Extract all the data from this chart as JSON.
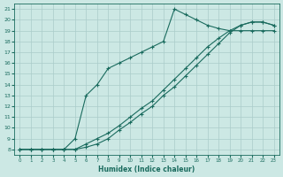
{
  "xlabel": "Humidex (Indice chaleur)",
  "xlim": [
    -0.5,
    23.5
  ],
  "ylim": [
    7.5,
    21.5
  ],
  "xticks": [
    0,
    1,
    2,
    3,
    4,
    5,
    6,
    7,
    8,
    9,
    10,
    11,
    12,
    13,
    14,
    15,
    16,
    17,
    18,
    19,
    20,
    21,
    22,
    23
  ],
  "yticks": [
    8,
    9,
    10,
    11,
    12,
    13,
    14,
    15,
    16,
    17,
    18,
    19,
    20,
    21
  ],
  "bg_color": "#cce8e4",
  "grid_color": "#aaccca",
  "line_color": "#1a6b5e",
  "line1_x": [
    0,
    1,
    2,
    3,
    4,
    5,
    6,
    7,
    8,
    9,
    10,
    11,
    12,
    13,
    14,
    15,
    16,
    17,
    18,
    19,
    20,
    21,
    22,
    23
  ],
  "line1_y": [
    8,
    8,
    8,
    8,
    8,
    8,
    8.2,
    8.5,
    9,
    9.8,
    10.5,
    11.3,
    12,
    13,
    13.8,
    14.8,
    15.8,
    16.8,
    17.8,
    18.8,
    19.5,
    19.8,
    19.8,
    19.5
  ],
  "line2_x": [
    0,
    1,
    2,
    3,
    4,
    5,
    6,
    7,
    8,
    9,
    10,
    11,
    12,
    13,
    14,
    15,
    16,
    17,
    18,
    19,
    20,
    21,
    22,
    23
  ],
  "line2_y": [
    8,
    8,
    8,
    8,
    8,
    8,
    8.5,
    9,
    9.5,
    10.2,
    11,
    11.8,
    12.5,
    13.5,
    14.5,
    15.5,
    16.5,
    17.5,
    18.3,
    19,
    19.5,
    19.8,
    19.8,
    19.5
  ],
  "line3_x": [
    0,
    1,
    2,
    3,
    4,
    5,
    6,
    7,
    8,
    9,
    10,
    11,
    12,
    13,
    14,
    15,
    16,
    17,
    18,
    19,
    20,
    21,
    22,
    23
  ],
  "line3_y": [
    8,
    8,
    8,
    8,
    8,
    9,
    13,
    14,
    15.5,
    16,
    16.5,
    17,
    17.5,
    18,
    21,
    20.5,
    20,
    19.5,
    19.2,
    19,
    19,
    19,
    19,
    19
  ]
}
